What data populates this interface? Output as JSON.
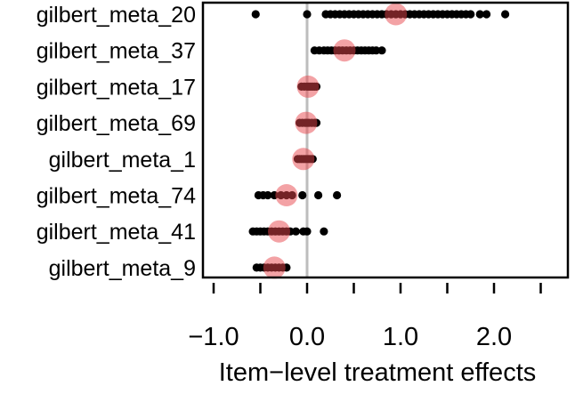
{
  "chart_data": {
    "type": "scatter",
    "title": "",
    "xlabel": "Item−level treatment effects",
    "ylabel": "",
    "xlim": [
      -1.0,
      2.5
    ],
    "x_ticks": [
      -1.0,
      -0.5,
      0.0,
      0.5,
      1.0,
      1.5,
      2.0,
      2.5
    ],
    "x_tick_labels": [
      {
        "value": -1.0,
        "label": "−1.0"
      },
      {
        "value": 0.0,
        "label": "0.0"
      },
      {
        "value": 1.0,
        "label": "1.0"
      },
      {
        "value": 2.0,
        "label": "2.0"
      }
    ],
    "reference_line": 0.0,
    "grid": false,
    "legend": "none",
    "colors": {
      "points": "#000000",
      "mean_marker": "#e8454b",
      "reference_line": "#bdbdbd",
      "frame": "#000000"
    },
    "categories": [
      "gilbert_meta_20",
      "gilbert_meta_37",
      "gilbert_meta_17",
      "gilbert_meta_69",
      "gilbert_meta_1",
      "gilbert_meta_74",
      "gilbert_meta_41",
      "gilbert_meta_9"
    ],
    "series": [
      {
        "category": "gilbert_meta_20",
        "mean": 0.95,
        "points": [
          -0.55,
          0.0,
          0.2,
          0.25,
          0.3,
          0.35,
          0.4,
          0.45,
          0.5,
          0.55,
          0.6,
          0.65,
          0.7,
          0.75,
          0.8,
          0.85,
          0.9,
          0.95,
          1.0,
          1.05,
          1.1,
          1.15,
          1.2,
          1.25,
          1.3,
          1.35,
          1.4,
          1.45,
          1.5,
          1.55,
          1.6,
          1.65,
          1.7,
          1.75,
          1.85,
          1.92,
          2.12
        ]
      },
      {
        "category": "gilbert_meta_37",
        "mean": 0.4,
        "points": [
          0.08,
          0.13,
          0.18,
          0.22,
          0.26,
          0.3,
          0.34,
          0.38,
          0.42,
          0.46,
          0.5,
          0.54,
          0.58,
          0.62,
          0.66,
          0.7,
          0.74,
          0.8
        ]
      },
      {
        "category": "gilbert_meta_17",
        "mean": 0.01,
        "points": [
          -0.06,
          -0.03,
          0.0,
          0.02,
          0.04,
          0.06,
          0.08,
          0.1
        ]
      },
      {
        "category": "gilbert_meta_69",
        "mean": -0.01,
        "points": [
          -0.08,
          -0.05,
          -0.02,
          0.0,
          0.02,
          0.05,
          0.08,
          0.1
        ]
      },
      {
        "category": "gilbert_meta_1",
        "mean": -0.04,
        "points": [
          -0.1,
          -0.08,
          -0.06,
          -0.04,
          -0.02,
          0.0,
          0.02,
          0.04,
          0.06
        ]
      },
      {
        "category": "gilbert_meta_74",
        "mean": -0.22,
        "points": [
          -0.52,
          -0.47,
          -0.42,
          -0.35,
          -0.28,
          -0.22,
          -0.16,
          -0.05,
          0.12,
          0.32
        ]
      },
      {
        "category": "gilbert_meta_41",
        "mean": -0.3,
        "points": [
          -0.58,
          -0.54,
          -0.5,
          -0.46,
          -0.42,
          -0.38,
          -0.34,
          -0.3,
          -0.26,
          -0.22,
          -0.18,
          -0.12,
          -0.04,
          0.0,
          0.18
        ]
      },
      {
        "category": "gilbert_meta_9",
        "mean": -0.35,
        "points": [
          -0.54,
          -0.5,
          -0.46,
          -0.42,
          -0.38,
          -0.34,
          -0.3,
          -0.26,
          -0.22
        ]
      }
    ]
  }
}
